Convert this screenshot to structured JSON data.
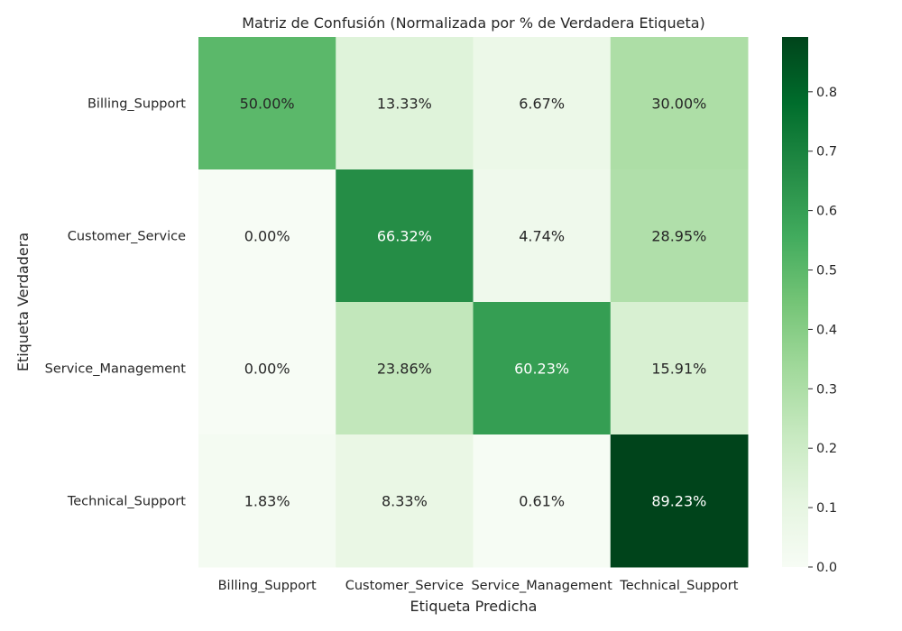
{
  "chart_data": {
    "type": "heatmap",
    "title": "Matriz de Confusión (Normalizada por % de Verdadera Etiqueta)",
    "xlabel": "Etiqueta Predicha",
    "ylabel": "Etiqueta Verdadera",
    "x_categories": [
      "Billing_Support",
      "Customer_Service",
      "Service_Management",
      "Technical_Support"
    ],
    "y_categories": [
      "Billing_Support",
      "Customer_Service",
      "Service_Management",
      "Technical_Support"
    ],
    "values": [
      [
        0.5,
        0.1333,
        0.0667,
        0.3
      ],
      [
        0.0,
        0.6632,
        0.0474,
        0.2895
      ],
      [
        0.0,
        0.2386,
        0.6023,
        0.1591
      ],
      [
        0.0183,
        0.0833,
        0.0061,
        0.8923
      ]
    ],
    "cell_labels": [
      [
        "50.00%",
        "13.33%",
        "6.67%",
        "30.00%"
      ],
      [
        "0.00%",
        "66.32%",
        "4.74%",
        "28.95%"
      ],
      [
        "0.00%",
        "23.86%",
        "60.23%",
        "15.91%"
      ],
      [
        "1.83%",
        "8.33%",
        "0.61%",
        "89.23%"
      ]
    ],
    "colormap": "Greens",
    "colorbar": {
      "min": 0.0,
      "max": 0.8923,
      "ticks": [
        "0.0",
        "0.1",
        "0.2",
        "0.3",
        "0.4",
        "0.5",
        "0.6",
        "0.7",
        "0.8"
      ]
    },
    "grid": false
  }
}
